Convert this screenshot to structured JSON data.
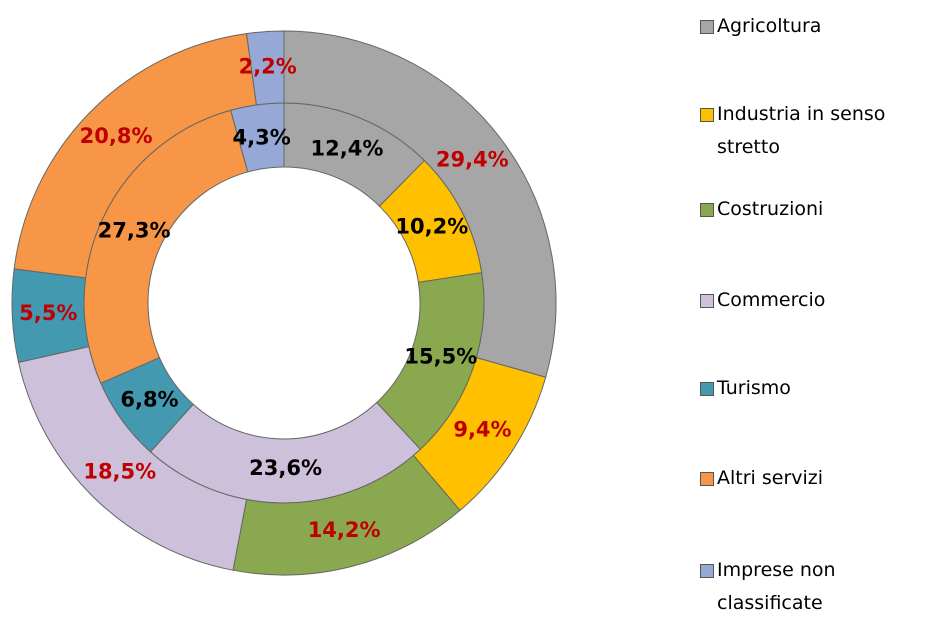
{
  "chart_data": {
    "type": "donut",
    "categories": [
      "Agricoltura",
      "Industria in senso stretto",
      "Costruzioni",
      "Commercio",
      "Turismo",
      "Altri servizi",
      "Imprese non classificate"
    ],
    "colors": [
      "#a6a6a6",
      "#ffc000",
      "#8aa84f",
      "#ccc0da",
      "#4399b0",
      "#f79646",
      "#95a8d6"
    ],
    "series": [
      {
        "values": [
          12.4,
          10.2,
          15.5,
          23.6,
          6.8,
          27.3,
          4.3
        ],
        "value_labels": [
          "12,4%",
          "10,2%",
          "15,5%",
          "23,6%",
          "6,8%",
          "27,3%",
          "4,3%"
        ],
        "label_color": "#000000"
      },
      {
        "values": [
          29.4,
          9.4,
          14.2,
          18.5,
          5.5,
          20.8,
          2.2
        ],
        "value_labels": [
          "29,4%",
          "9,4%",
          "14,2%",
          "18,5%",
          "5,5%",
          "20,8%",
          "2,2%"
        ],
        "label_color": "#c00000"
      }
    ],
    "legend": "right"
  }
}
